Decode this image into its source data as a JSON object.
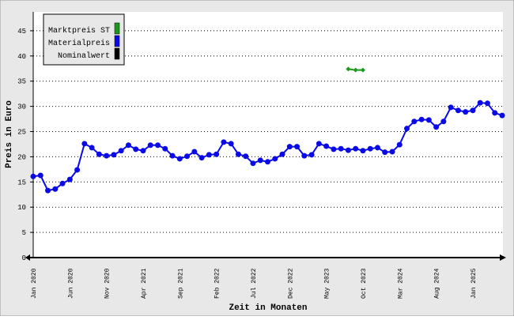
{
  "chart_data": {
    "type": "line",
    "xlabel": "Zeit in Monaten",
    "ylabel": "Preis in Euro",
    "categories": [
      "Jan 2020",
      null,
      null,
      null,
      null,
      "Jun 2020",
      null,
      null,
      null,
      null,
      "Nov 2020",
      null,
      null,
      null,
      null,
      "Apr 2021",
      null,
      null,
      null,
      null,
      "Sep 2021",
      null,
      null,
      null,
      null,
      "Feb 2022",
      null,
      null,
      null,
      null,
      "Jul 2022",
      null,
      null,
      null,
      null,
      "Dec 2022",
      null,
      null,
      null,
      null,
      "May 2023",
      null,
      null,
      null,
      null,
      "Oct 2023",
      null,
      null,
      null,
      null,
      "Mar 2024",
      null,
      null,
      null,
      null,
      "Aug 2024",
      null,
      null,
      null,
      null,
      "Jan 2025",
      null,
      null,
      null,
      null
    ],
    "series": [
      {
        "name": "Marktpreis ST",
        "color": "#1a991a",
        "marker": "diamond",
        "values": [
          null,
          null,
          null,
          null,
          null,
          null,
          null,
          null,
          null,
          null,
          null,
          null,
          null,
          null,
          null,
          null,
          null,
          null,
          null,
          null,
          null,
          null,
          null,
          null,
          null,
          null,
          null,
          null,
          null,
          null,
          null,
          null,
          null,
          null,
          null,
          null,
          null,
          null,
          null,
          null,
          null,
          null,
          null,
          37.4,
          37.2,
          37.2,
          null,
          null,
          null,
          null,
          null,
          null,
          null,
          null,
          null,
          null,
          null,
          null,
          null,
          null,
          null,
          null,
          null,
          null,
          null
        ]
      },
      {
        "name": "Materialpreis",
        "color": "#0a0ae6",
        "marker": "circle",
        "values": [
          16.1,
          16.3,
          13.3,
          13.6,
          14.7,
          15.5,
          17.4,
          22.6,
          21.8,
          20.5,
          20.2,
          20.4,
          21.2,
          22.3,
          21.5,
          21.2,
          22.3,
          22.3,
          21.6,
          20.2,
          19.6,
          20.1,
          21.0,
          19.8,
          20.4,
          20.5,
          22.9,
          22.6,
          20.5,
          20.1,
          18.7,
          19.3,
          19.0,
          19.6,
          20.5,
          22.0,
          22.0,
          20.2,
          20.4,
          22.6,
          22.1,
          21.5,
          21.6,
          21.3,
          21.6,
          21.2,
          21.6,
          21.8,
          20.9,
          21.0,
          22.4,
          25.6,
          27.0,
          27.4,
          27.3,
          25.9,
          27.0,
          29.8,
          29.2,
          28.9,
          29.2,
          30.7,
          30.6,
          28.7,
          28.2
        ]
      },
      {
        "name": "Nominalwert",
        "color": "#000000",
        "marker": "circle",
        "values": [
          null,
          null,
          null,
          null,
          null,
          null,
          null,
          null,
          null,
          null,
          null,
          null,
          null,
          null,
          null,
          null,
          null,
          null,
          null,
          null,
          null,
          null,
          null,
          null,
          null,
          null,
          null,
          null,
          null,
          null,
          null,
          null,
          null,
          null,
          null,
          null,
          null,
          null,
          null,
          null,
          null,
          null,
          null,
          null,
          null,
          null,
          null,
          null,
          null,
          null,
          null,
          null,
          null,
          null,
          null,
          null,
          null,
          null,
          null,
          null,
          null,
          null,
          null,
          null,
          null
        ]
      }
    ],
    "ylim": [
      0,
      48.75
    ],
    "yticks": [
      0,
      5,
      10,
      15,
      20,
      25,
      30,
      35,
      40,
      45
    ],
    "grid": true,
    "legend": "upper left"
  }
}
